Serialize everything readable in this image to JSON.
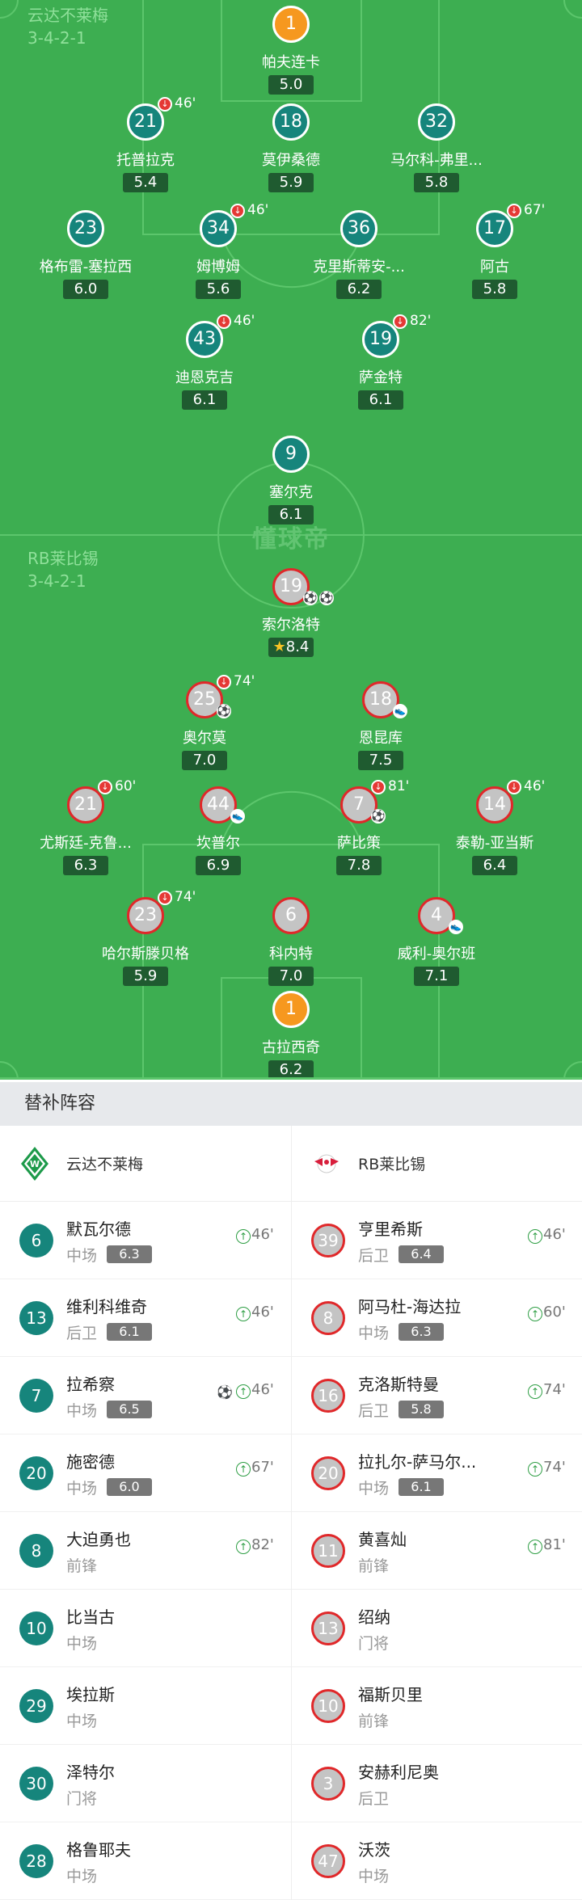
{
  "watermark": "懂球帝",
  "colors": {
    "pitch": "#3dae51",
    "werder": "#16857c",
    "leipzig_fill": "#c4c4c4",
    "leipzig_border": "#e0282a",
    "goalkeeper": "#f6981f",
    "rating": "#1f5b30"
  },
  "home": {
    "name": "云达不莱梅",
    "formation": "3-4-2-1",
    "players": [
      {
        "num": "1",
        "name": "帕夫连卡",
        "rating": "5.0",
        "gk": true
      },
      {
        "num": "21",
        "name": "托普拉克",
        "rating": "5.4",
        "off": "46'"
      },
      {
        "num": "18",
        "name": "莫伊桑德",
        "rating": "5.9"
      },
      {
        "num": "32",
        "name": "马尔科-弗里...",
        "rating": "5.8"
      },
      {
        "num": "23",
        "name": "格布雷-塞拉西",
        "rating": "6.0"
      },
      {
        "num": "34",
        "name": "姆博姆",
        "rating": "5.6",
        "off": "46'"
      },
      {
        "num": "36",
        "name": "克里斯蒂安-...",
        "rating": "6.2"
      },
      {
        "num": "17",
        "name": "阿古",
        "rating": "5.8",
        "off": "67'"
      },
      {
        "num": "43",
        "name": "迪恩克吉",
        "rating": "6.1",
        "off": "46'"
      },
      {
        "num": "19",
        "name": "萨金特",
        "rating": "6.1",
        "off": "82'"
      },
      {
        "num": "9",
        "name": "塞尔克",
        "rating": "6.1"
      }
    ]
  },
  "away": {
    "name": "RB莱比锡",
    "formation": "3-4-2-1",
    "players": [
      {
        "num": "19",
        "name": "索尔洛特",
        "rating": "8.4",
        "star": true,
        "goals": 2
      },
      {
        "num": "25",
        "name": "奥尔莫",
        "rating": "7.0",
        "off": "74'",
        "goals": 1
      },
      {
        "num": "18",
        "name": "恩昆库",
        "rating": "7.5",
        "assist": true
      },
      {
        "num": "21",
        "name": "尤斯廷-克鲁...",
        "rating": "6.3",
        "off": "60'"
      },
      {
        "num": "44",
        "name": "坎普尔",
        "rating": "6.9",
        "assist": true
      },
      {
        "num": "7",
        "name": "萨比策",
        "rating": "7.8",
        "off": "81'",
        "goals": 1
      },
      {
        "num": "14",
        "name": "泰勒-亚当斯",
        "rating": "6.4",
        "off": "46'"
      },
      {
        "num": "23",
        "name": "哈尔斯滕贝格",
        "rating": "5.9",
        "off": "74'"
      },
      {
        "num": "6",
        "name": "科内特",
        "rating": "7.0"
      },
      {
        "num": "4",
        "name": "威利-奥尔班",
        "rating": "7.1",
        "assist": true
      },
      {
        "num": "1",
        "name": "古拉西奇",
        "rating": "6.2",
        "gk": true
      }
    ]
  },
  "subs": {
    "title": "替补阵容",
    "home": [
      {
        "num": "6",
        "name": "默瓦尔德",
        "pos": "中场",
        "rating": "6.3",
        "in": "46'"
      },
      {
        "num": "13",
        "name": "维利科维奇",
        "pos": "后卫",
        "rating": "6.1",
        "in": "46'"
      },
      {
        "num": "7",
        "name": "拉希察",
        "pos": "中场",
        "rating": "6.5",
        "in": "46'",
        "goal": true
      },
      {
        "num": "20",
        "name": "施密德",
        "pos": "中场",
        "rating": "6.0",
        "in": "67'"
      },
      {
        "num": "8",
        "name": "大迫勇也",
        "pos": "前锋",
        "in": "82'"
      },
      {
        "num": "10",
        "name": "比当古",
        "pos": "中场"
      },
      {
        "num": "29",
        "name": "埃拉斯",
        "pos": "中场"
      },
      {
        "num": "30",
        "name": "泽特尔",
        "pos": "门将"
      },
      {
        "num": "28",
        "name": "格鲁耶夫",
        "pos": "中场"
      }
    ],
    "away": [
      {
        "num": "39",
        "name": "亨里希斯",
        "pos": "后卫",
        "rating": "6.4",
        "in": "46'"
      },
      {
        "num": "8",
        "name": "阿马杜-海达拉",
        "pos": "中场",
        "rating": "6.3",
        "in": "60'"
      },
      {
        "num": "16",
        "name": "克洛斯特曼",
        "pos": "后卫",
        "rating": "5.8",
        "in": "74'"
      },
      {
        "num": "20",
        "name": "拉扎尔-萨马尔...",
        "pos": "中场",
        "rating": "6.1",
        "in": "74'"
      },
      {
        "num": "11",
        "name": "黄喜灿",
        "pos": "前锋",
        "in": "81'"
      },
      {
        "num": "13",
        "name": "绍纳",
        "pos": "门将"
      },
      {
        "num": "10",
        "name": "福斯贝里",
        "pos": "前锋"
      },
      {
        "num": "3",
        "name": "安赫利尼奥",
        "pos": "后卫"
      },
      {
        "num": "47",
        "name": "沃茨",
        "pos": "中场"
      }
    ]
  }
}
